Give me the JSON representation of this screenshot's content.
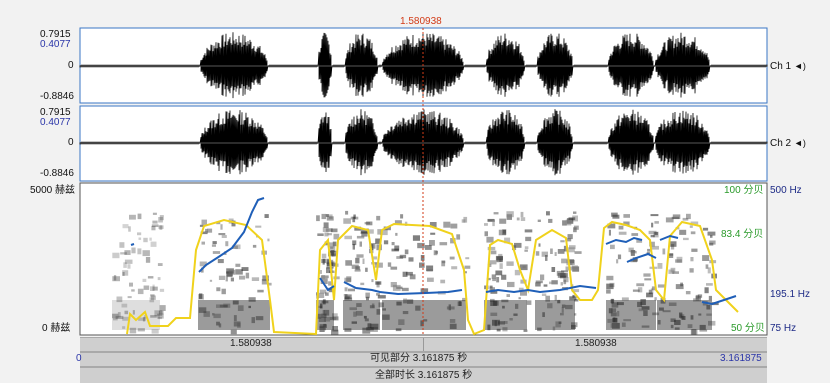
{
  "cursor": {
    "time_label": "1.580938"
  },
  "channels": [
    {
      "name": "Ch 1",
      "icon": "speaker-icon",
      "max": "0.7915",
      "sub_max": "0.4077",
      "zero": "0",
      "min": "-0.8846"
    },
    {
      "name": "Ch 2",
      "icon": "speaker-icon",
      "max": "0.7915",
      "sub_max": "0.4077",
      "zero": "0",
      "min": "-0.8846"
    }
  ],
  "spectrogram": {
    "freq_top": "5000 赫兹",
    "freq_bottom": "0 赫兹",
    "intensity_top": "100 分贝",
    "intensity_mid": "83.4 分贝",
    "intensity_bottom": "50 分贝",
    "pitch_top": "500 Hz",
    "pitch_mid": "195.1 Hz",
    "pitch_bottom": "75 Hz"
  },
  "cursor_bar": {
    "left": "1.580938",
    "right": "1.580938"
  },
  "visible_bar": {
    "start": "0",
    "label": "可见部分 3.161875 秒",
    "end": "3.161875"
  },
  "total_bar": {
    "label": "全部时长 3.161875 秒"
  },
  "colors": {
    "accent_cursor": "#d23b17",
    "pitch": "#1f5fb8",
    "intensity": "#f0d21c",
    "pane_border": "#3a76c4"
  }
}
